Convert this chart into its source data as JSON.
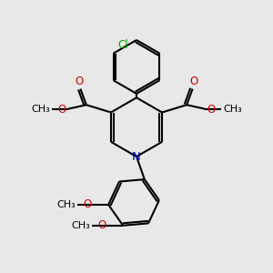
{
  "bg_color": "#e8e8e8",
  "bond_color": "#000000",
  "N_color": "#0000cc",
  "O_color": "#cc0000",
  "Cl_color": "#00aa00",
  "line_width": 1.5,
  "font_size": 8.5,
  "fig_size": [
    3.0,
    3.0
  ],
  "dpi": 100,
  "xlim": [
    0,
    10
  ],
  "ylim": [
    0,
    10
  ]
}
